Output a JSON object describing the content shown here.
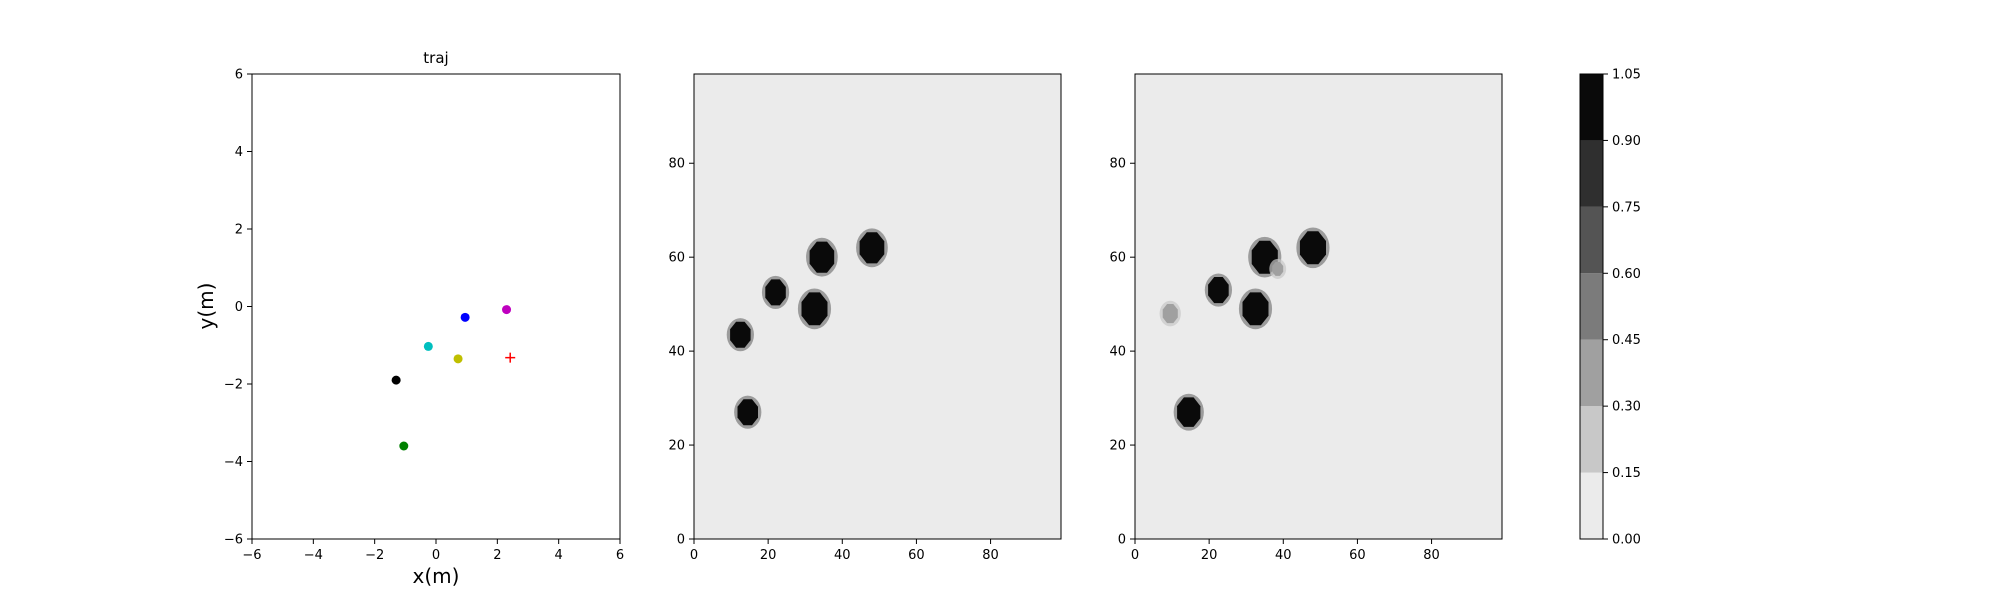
{
  "chart_data": [
    {
      "type": "scatter",
      "title": "traj",
      "xlabel": "x(m)",
      "ylabel": "y(m)",
      "xlim": [
        -6,
        6
      ],
      "ylim": [
        -6,
        6
      ],
      "xticks": [
        "−6",
        "−4",
        "−2",
        "0",
        "2",
        "4",
        "6"
      ],
      "yticks": [
        "−6",
        "−4",
        "−2",
        "0",
        "2",
        "4",
        "6"
      ],
      "grid": false,
      "points": [
        {
          "x": 0.95,
          "y": -0.28,
          "color": "#0000ff",
          "marker": "circle"
        },
        {
          "x": 2.3,
          "y": -0.08,
          "color": "#bf00bf",
          "marker": "circle"
        },
        {
          "x": -0.25,
          "y": -1.03,
          "color": "#00bfbf",
          "marker": "circle"
        },
        {
          "x": 0.72,
          "y": -1.35,
          "color": "#bfbf00",
          "marker": "circle"
        },
        {
          "x": -1.3,
          "y": -1.9,
          "color": "#000000",
          "marker": "circle"
        },
        {
          "x": -1.05,
          "y": -3.6,
          "color": "#008000",
          "marker": "circle"
        },
        {
          "x": 2.42,
          "y": -1.32,
          "color": "#ff0000",
          "marker": "plus"
        }
      ]
    },
    {
      "type": "heatmap",
      "xlim": [
        0,
        99
      ],
      "ylim": [
        0,
        99
      ],
      "xticks": [
        "0",
        "20",
        "40",
        "60",
        "80"
      ],
      "yticks": [
        "0",
        "20",
        "40",
        "60",
        "80"
      ],
      "background_value": 0.08,
      "blobs": [
        {
          "x": 48,
          "y": 62,
          "r": 3.6,
          "value": 1.0
        },
        {
          "x": 34.5,
          "y": 60,
          "r": 3.6,
          "value": 1.0
        },
        {
          "x": 22,
          "y": 52.5,
          "r": 3.0,
          "value": 1.0
        },
        {
          "x": 32.5,
          "y": 49,
          "r": 3.8,
          "value": 1.0
        },
        {
          "x": 12.5,
          "y": 43.5,
          "r": 3.0,
          "value": 1.0
        },
        {
          "x": 14.5,
          "y": 27,
          "r": 3.0,
          "value": 1.0
        }
      ]
    },
    {
      "type": "heatmap",
      "xlim": [
        0,
        99
      ],
      "ylim": [
        0,
        99
      ],
      "xticks": [
        "0",
        "20",
        "40",
        "60",
        "80"
      ],
      "yticks": [
        "0",
        "20",
        "40",
        "60",
        "80"
      ],
      "background_value": 0.08,
      "blobs": [
        {
          "x": 48,
          "y": 62,
          "r": 3.8,
          "value": 1.0
        },
        {
          "x": 35,
          "y": 60,
          "r": 3.8,
          "value": 1.0
        },
        {
          "x": 22.5,
          "y": 53,
          "r": 3.0,
          "value": 1.0
        },
        {
          "x": 32.5,
          "y": 49,
          "r": 3.8,
          "value": 1.0
        },
        {
          "x": 14.5,
          "y": 27,
          "r": 3.4,
          "value": 1.0
        },
        {
          "x": 9.5,
          "y": 48,
          "r": 2.2,
          "value": 0.35
        },
        {
          "x": 38.5,
          "y": 57.5,
          "r": 1.6,
          "value": 0.4
        }
      ]
    },
    {
      "type": "colorbar",
      "levels": [
        0.0,
        0.15,
        0.3,
        0.45,
        0.6,
        0.75,
        0.9,
        1.05
      ],
      "tick_labels": [
        "0.00",
        "0.15",
        "0.30",
        "0.45",
        "0.60",
        "0.75",
        "0.90",
        "1.05"
      ],
      "colors": [
        "#ebebeb",
        "#c8c8c8",
        "#a0a0a0",
        "#7b7b7b",
        "#545454",
        "#2f2f2f",
        "#0a0a0a"
      ]
    }
  ]
}
